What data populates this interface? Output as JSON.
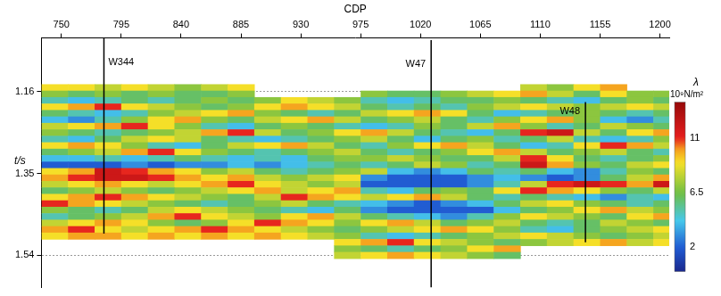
{
  "chart_data": {
    "type": "heatmap",
    "x_label": "CDP",
    "y_label": "t/s",
    "xlim": [
      735,
      1207
    ],
    "xticks": [
      750,
      795,
      840,
      885,
      930,
      975,
      1020,
      1065,
      1110,
      1155,
      1200
    ],
    "ylim": [
      1.035,
      1.615
    ],
    "yticks": [
      1.16,
      1.35,
      1.54
    ],
    "grid": true,
    "cells": {
      "x": [
        745,
        765,
        785,
        805,
        825,
        845,
        865,
        885,
        905,
        925,
        945,
        965,
        985,
        1005,
        1025,
        1045,
        1065,
        1085,
        1105,
        1125,
        1145,
        1165,
        1185,
        1205
      ],
      "y": [
        1.15,
        1.165,
        1.18,
        1.195,
        1.21,
        1.225,
        1.24,
        1.255,
        1.27,
        1.285,
        1.3,
        1.315,
        1.33,
        1.345,
        1.36,
        1.375,
        1.39,
        1.405,
        1.42,
        1.435,
        1.45,
        1.465,
        1.48,
        1.495,
        1.51,
        1.525,
        1.54
      ],
      "values": [
        [
          9,
          9,
          8,
          9,
          8,
          7,
          8,
          9,
          null,
          null,
          null,
          null,
          null,
          null,
          null,
          null,
          null,
          null,
          8,
          7,
          9,
          10,
          null,
          null
        ],
        [
          7,
          6,
          7,
          6,
          7,
          6,
          6,
          7,
          null,
          null,
          null,
          null,
          7,
          6,
          6,
          7,
          8,
          9,
          10,
          8,
          6,
          9,
          7,
          7
        ],
        [
          5,
          4,
          5,
          6,
          5,
          6,
          7,
          6,
          7,
          9,
          8,
          7,
          5,
          4,
          5,
          6,
          6,
          7,
          6,
          5,
          4,
          6,
          7,
          6
        ],
        [
          9,
          10,
          11,
          9,
          8,
          7,
          6,
          7,
          9,
          10,
          9,
          8,
          6,
          5,
          6,
          5,
          7,
          8,
          9,
          8,
          7,
          8,
          9,
          8
        ],
        [
          6,
          5,
          4,
          5,
          7,
          8,
          9,
          10,
          7,
          6,
          5,
          6,
          8,
          9,
          10,
          9,
          6,
          4,
          5,
          6,
          7,
          6,
          5,
          6
        ],
        [
          4,
          3,
          5,
          7,
          9,
          10,
          7,
          6,
          8,
          9,
          10,
          8,
          6,
          7,
          8,
          6,
          5,
          7,
          9,
          10,
          7,
          4,
          3,
          5
        ],
        [
          8,
          9,
          10,
          11,
          9,
          7,
          5,
          4,
          6,
          7,
          6,
          5,
          4,
          5,
          7,
          6,
          8,
          10,
          7,
          5,
          6,
          8,
          7,
          6
        ],
        [
          7,
          6,
          5,
          6,
          7,
          8,
          10,
          11,
          8,
          6,
          7,
          9,
          10,
          8,
          6,
          5,
          4,
          6,
          11,
          12,
          8,
          6,
          9,
          10
        ],
        [
          5,
          4,
          6,
          8,
          9,
          8,
          6,
          5,
          4,
          5,
          6,
          7,
          8,
          6,
          4,
          6,
          7,
          5,
          6,
          8,
          5,
          4,
          5,
          7
        ],
        [
          9,
          10,
          9,
          7,
          5,
          4,
          6,
          8,
          9,
          10,
          8,
          6,
          5,
          7,
          9,
          10,
          8,
          6,
          4,
          5,
          9,
          11,
          10,
          8
        ],
        [
          6,
          7,
          8,
          10,
          11,
          9,
          7,
          6,
          5,
          6,
          7,
          8,
          6,
          5,
          6,
          7,
          9,
          10,
          8,
          6,
          7,
          8,
          6,
          5
        ],
        [
          4,
          4,
          5,
          4,
          5,
          6,
          5,
          4,
          5,
          4,
          6,
          7,
          7,
          8,
          7,
          6,
          6,
          8,
          11,
          9,
          6,
          5,
          6,
          7
        ],
        [
          2,
          2,
          2,
          3,
          2,
          3,
          3,
          4,
          3,
          4,
          5,
          6,
          5,
          6,
          8,
          7,
          5,
          6,
          12,
          10,
          7,
          6,
          8,
          9
        ],
        [
          9,
          10,
          12,
          11,
          10,
          9,
          7,
          8,
          6,
          5,
          6,
          7,
          8,
          4,
          3,
          4,
          6,
          5,
          6,
          4,
          3,
          5,
          7,
          6
        ],
        [
          10,
          11,
          12,
          12,
          11,
          10,
          9,
          10,
          8,
          7,
          8,
          9,
          3,
          2,
          2,
          2,
          3,
          4,
          3,
          2,
          3,
          6,
          8,
          10
        ],
        [
          8,
          9,
          10,
          9,
          8,
          9,
          10,
          11,
          9,
          8,
          7,
          8,
          2,
          2,
          2,
          2,
          3,
          5,
          8,
          11,
          12,
          11,
          10,
          12
        ],
        [
          6,
          7,
          8,
          7,
          6,
          7,
          8,
          9,
          10,
          8,
          9,
          10,
          5,
          4,
          6,
          7,
          6,
          9,
          11,
          10,
          9,
          7,
          6,
          8
        ],
        [
          9,
          10,
          11,
          10,
          9,
          8,
          7,
          6,
          8,
          11,
          10,
          9,
          8,
          9,
          10,
          8,
          6,
          5,
          6,
          5,
          4,
          3,
          5,
          4
        ],
        [
          11,
          10,
          9,
          8,
          7,
          6,
          5,
          6,
          7,
          8,
          6,
          5,
          4,
          3,
          2,
          3,
          4,
          6,
          8,
          9,
          7,
          6,
          5,
          6
        ],
        [
          7,
          6,
          5,
          6,
          8,
          9,
          8,
          7,
          6,
          5,
          4,
          6,
          3,
          2,
          2,
          2,
          2,
          4,
          6,
          7,
          9,
          10,
          8,
          7
        ],
        [
          5,
          6,
          7,
          8,
          10,
          11,
          9,
          8,
          7,
          9,
          10,
          8,
          6,
          5,
          4,
          3,
          5,
          7,
          9,
          8,
          7,
          6,
          9,
          10
        ],
        [
          8,
          9,
          10,
          9,
          7,
          6,
          7,
          9,
          11,
          10,
          9,
          7,
          9,
          10,
          8,
          6,
          7,
          8,
          6,
          5,
          6,
          8,
          7,
          6
        ],
        [
          10,
          11,
          9,
          8,
          9,
          10,
          11,
          10,
          9,
          8,
          7,
          6,
          7,
          8,
          9,
          10,
          9,
          7,
          5,
          4,
          6,
          7,
          8,
          9
        ],
        [
          9,
          10,
          10,
          9,
          10,
          9,
          10,
          9,
          10,
          9,
          8,
          7,
          5,
          4,
          5,
          6,
          7,
          8,
          9,
          8,
          7,
          6,
          7,
          8
        ],
        [
          null,
          null,
          null,
          null,
          null,
          null,
          null,
          null,
          null,
          null,
          null,
          9,
          10,
          11,
          9,
          8,
          7,
          6,
          7,
          8,
          9,
          10,
          8,
          9
        ],
        [
          null,
          null,
          null,
          null,
          null,
          null,
          null,
          null,
          null,
          null,
          null,
          7,
          6,
          5,
          6,
          7,
          9,
          10,
          null,
          null,
          null,
          null,
          null,
          null
        ],
        [
          null,
          null,
          null,
          null,
          null,
          null,
          null,
          null,
          null,
          null,
          null,
          8,
          9,
          10,
          9,
          8,
          7,
          6,
          null,
          null,
          null,
          null,
          null,
          null
        ]
      ]
    },
    "colorbar": {
      "label": "λ",
      "unit": "10⁹N/m²",
      "range": [
        0,
        14
      ],
      "ticks": [
        2,
        6.5,
        11
      ]
    },
    "wells": [
      {
        "name": "W344",
        "cdp": 782,
        "t": [
          1.035,
          1.49
        ]
      },
      {
        "name": "W47",
        "cdp": 1028,
        "t": [
          1.04,
          1.615
        ]
      },
      {
        "name": "W48",
        "cdp": 1144,
        "t": [
          1.184,
          1.51
        ]
      }
    ]
  }
}
